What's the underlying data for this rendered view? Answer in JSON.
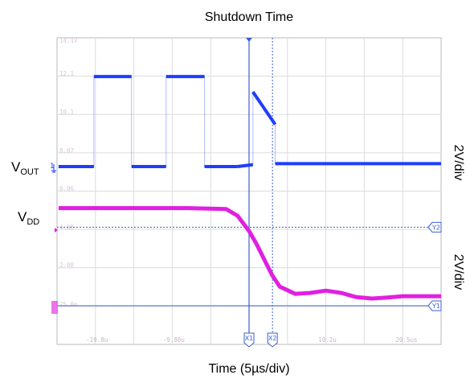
{
  "chart_data": {
    "type": "line",
    "title": "Shutdown Time",
    "xlabel": "Time (5µs/div)",
    "x_unit": "µs",
    "xlim": [
      -25,
      25
    ],
    "x_tick_labels": [
      "-19.8u",
      "-9.80u",
      "10.2u",
      "20.5us"
    ],
    "x_tick_values": [
      -19.8,
      -9.8,
      10.2,
      20.5
    ],
    "grid": true,
    "series": [
      {
        "name": "VOUT",
        "name_main": "V",
        "name_sub": "OUT",
        "scale_label": "2V/div",
        "color": "#1f3cff",
        "marker": "1",
        "x": [
          -24.8,
          -20.2,
          -20.2,
          -15.3,
          -15.3,
          -10.8,
          -10.8,
          -5.8,
          -5.8,
          -1.5,
          0.5,
          0.5,
          3.4,
          3.4,
          25
        ],
        "y": [
          0,
          0,
          4.7,
          4.7,
          0,
          0,
          4.7,
          4.7,
          0,
          0,
          0.1,
          3.9,
          2.2,
          0.15,
          0.15
        ]
      },
      {
        "name": "VDD",
        "name_main": "V",
        "name_sub": "DD",
        "scale_label": "2V/div",
        "color": "#e020e0",
        "x": [
          -24.8,
          -8,
          -3,
          -1.5,
          0,
          1,
          2,
          3,
          4,
          6,
          8,
          10,
          12,
          14,
          16,
          18,
          20,
          22,
          25
        ],
        "y": [
          5.1,
          5.1,
          5.05,
          4.7,
          3.9,
          3.2,
          2.4,
          1.6,
          1.0,
          0.62,
          0.67,
          0.79,
          0.67,
          0.45,
          0.38,
          0.43,
          0.5,
          0.5,
          0.5
        ]
      }
    ],
    "cursors": {
      "vertical": [
        {
          "label": "X1",
          "x": 0.0
        },
        {
          "label": "X2",
          "x": 3.05
        }
      ],
      "horizontal": [
        {
          "label": "Y2",
          "series": "VDD",
          "y": 4.1
        },
        {
          "label": "Y1",
          "series": "VDD",
          "y": 0
        }
      ]
    },
    "faint_readouts": [
      "14.1V",
      "12.1",
      "10.1",
      "8.07",
      "6.06",
      "4.08",
      "2.08",
      "25.0n"
    ]
  }
}
